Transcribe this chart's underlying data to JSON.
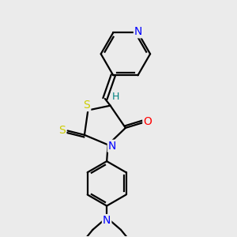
{
  "bg_color": "#ebebeb",
  "bond_color": "#000000",
  "bond_width": 1.6,
  "atom_colors": {
    "N": "#0000ff",
    "O": "#ff0000",
    "S": "#cccc00",
    "C": "#000000",
    "H": "#008080"
  },
  "font_size": 9,
  "fig_size": [
    3.0,
    3.0
  ],
  "dpi": 100
}
